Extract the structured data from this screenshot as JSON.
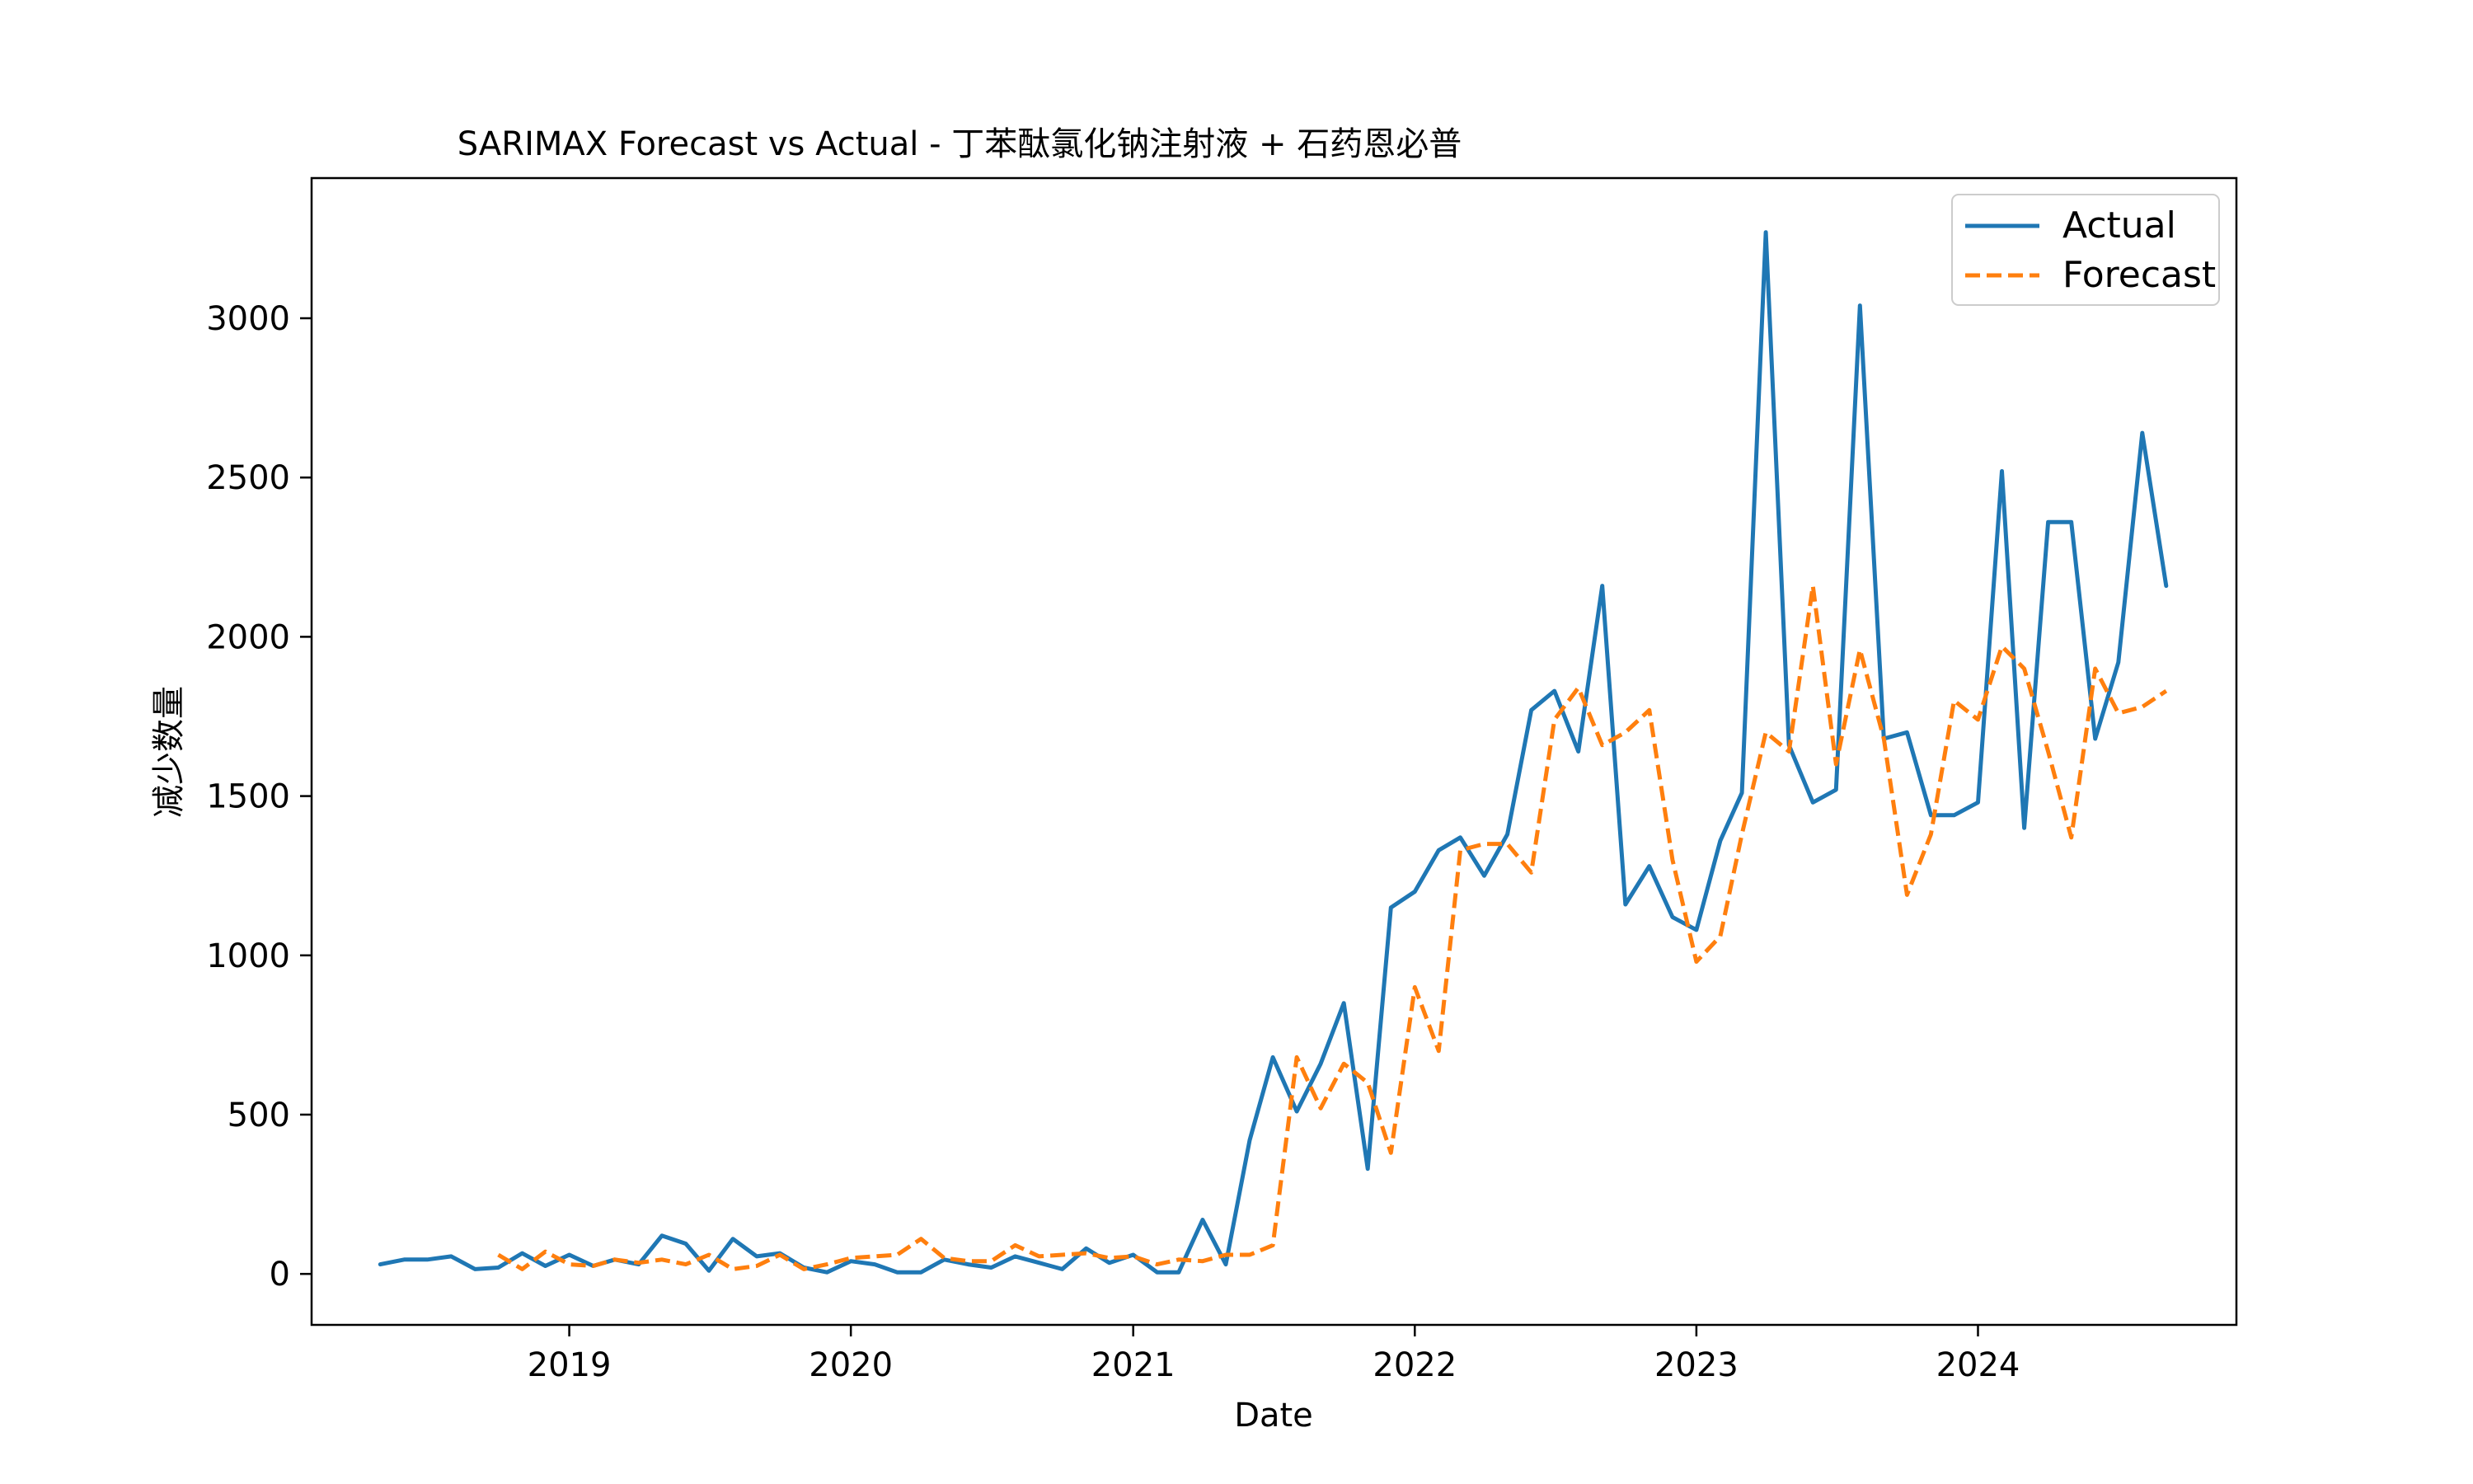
{
  "chart_data": {
    "type": "line",
    "title": "SARIMAX Forecast vs Actual - 丁苯酞氯化钠注射液 + 石药恩必普",
    "xlabel": "Date",
    "ylabel": "减少数量",
    "ylim": [
      -160,
      3440
    ],
    "xlim": [
      "2018-02-01",
      "2024-12-01"
    ],
    "yticks": [
      0,
      500,
      1000,
      1500,
      2000,
      2500,
      3000
    ],
    "xticks": [
      "2019",
      "2020",
      "2021",
      "2022",
      "2023",
      "2024"
    ],
    "grid": false,
    "legend_position": "top-right",
    "colors": {
      "actual": "#1f77b4",
      "forecast": "#ff7f0e"
    },
    "series": [
      {
        "name": "Actual",
        "style": "solid",
        "x": [
          "2018-05",
          "2018-06",
          "2018-07",
          "2018-08",
          "2018-09",
          "2018-10",
          "2018-11",
          "2018-12",
          "2019-01",
          "2019-02",
          "2019-03",
          "2019-04",
          "2019-05",
          "2019-06",
          "2019-07",
          "2019-08",
          "2019-09",
          "2019-10",
          "2019-11",
          "2019-12",
          "2020-01",
          "2020-02",
          "2020-03",
          "2020-04",
          "2020-05",
          "2020-06",
          "2020-07",
          "2020-08",
          "2020-09",
          "2020-10",
          "2020-11",
          "2020-12",
          "2021-01",
          "2021-02",
          "2021-03",
          "2021-04",
          "2021-05",
          "2021-06",
          "2021-07",
          "2021-08",
          "2021-09",
          "2021-10",
          "2021-11",
          "2021-12",
          "2022-01",
          "2022-02",
          "2022-03",
          "2022-04",
          "2022-05",
          "2022-06",
          "2022-07",
          "2022-08",
          "2022-09",
          "2022-10",
          "2022-11",
          "2022-12",
          "2023-01",
          "2023-02",
          "2023-03",
          "2023-04",
          "2023-05",
          "2023-06",
          "2023-07",
          "2023-08",
          "2023-09",
          "2023-10",
          "2023-11",
          "2023-12",
          "2024-01",
          "2024-02",
          "2024-03",
          "2024-04",
          "2024-05",
          "2024-06",
          "2024-07",
          "2024-08",
          "2024-09"
        ],
        "values": [
          30,
          45,
          45,
          55,
          15,
          20,
          65,
          25,
          60,
          25,
          45,
          30,
          120,
          95,
          10,
          110,
          55,
          65,
          20,
          5,
          40,
          30,
          5,
          5,
          45,
          30,
          20,
          55,
          35,
          15,
          80,
          35,
          60,
          5,
          5,
          170,
          30,
          420,
          680,
          510,
          660,
          850,
          330,
          1150,
          1200,
          1330,
          1370,
          1250,
          1380,
          1770,
          1830,
          1640,
          2160,
          1160,
          1280,
          1120,
          1080,
          1360,
          1510,
          3270,
          1660,
          1480,
          1520,
          3040,
          1680,
          1700,
          1440,
          1440,
          1480,
          2520,
          1400,
          2360,
          2360,
          1680,
          1920,
          2640,
          2160
        ]
      },
      {
        "name": "Forecast",
        "style": "dashed",
        "x": [
          "2018-10",
          "2018-11",
          "2018-12",
          "2019-01",
          "2019-02",
          "2019-03",
          "2019-04",
          "2019-05",
          "2019-06",
          "2019-07",
          "2019-08",
          "2019-09",
          "2019-10",
          "2019-11",
          "2019-12",
          "2020-01",
          "2020-02",
          "2020-03",
          "2020-04",
          "2020-05",
          "2020-06",
          "2020-07",
          "2020-08",
          "2020-09",
          "2020-10",
          "2020-11",
          "2020-12",
          "2021-01",
          "2021-02",
          "2021-03",
          "2021-04",
          "2021-05",
          "2021-06",
          "2021-07",
          "2021-08",
          "2021-09",
          "2021-10",
          "2021-11",
          "2021-12",
          "2022-01",
          "2022-02",
          "2022-03",
          "2022-04",
          "2022-05",
          "2022-06",
          "2022-07",
          "2022-08",
          "2022-09",
          "2022-10",
          "2022-11",
          "2022-12",
          "2023-01",
          "2023-02",
          "2023-03",
          "2023-04",
          "2023-05",
          "2023-06",
          "2023-07",
          "2023-08",
          "2023-09",
          "2023-10",
          "2023-11",
          "2023-12",
          "2024-01",
          "2024-02",
          "2024-03",
          "2024-04",
          "2024-05",
          "2024-06",
          "2024-07",
          "2024-08",
          "2024-09"
        ],
        "values": [
          60,
          15,
          70,
          30,
          25,
          45,
          35,
          45,
          30,
          60,
          15,
          25,
          60,
          15,
          30,
          50,
          55,
          60,
          110,
          50,
          40,
          40,
          90,
          55,
          60,
          65,
          50,
          55,
          30,
          45,
          40,
          60,
          60,
          90,
          680,
          520,
          660,
          600,
          380,
          900,
          700,
          1330,
          1350,
          1350,
          1260,
          1740,
          1840,
          1660,
          1700,
          1770,
          1300,
          980,
          1060,
          1380,
          1700,
          1640,
          2160,
          1600,
          1960,
          1680,
          1190,
          1380,
          1800,
          1740,
          1970,
          1900,
          1640,
          1370,
          1900,
          1760,
          1780,
          1830
        ]
      }
    ]
  }
}
